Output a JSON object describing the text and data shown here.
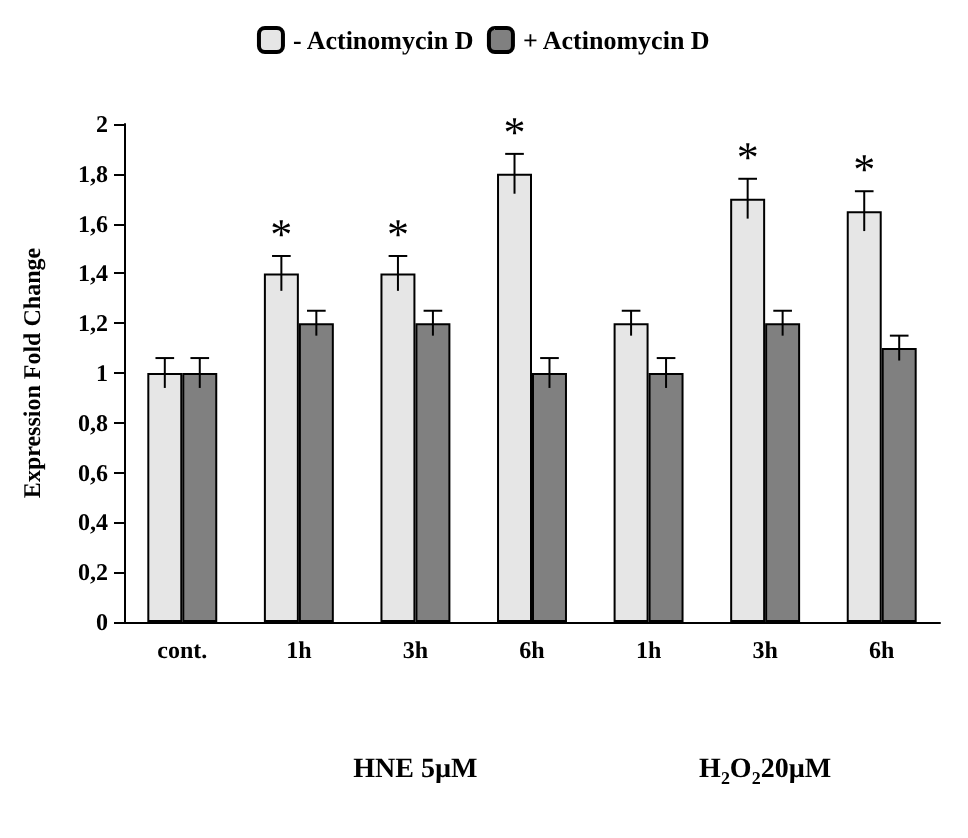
{
  "chart_data": {
    "type": "bar",
    "ylabel": "Expression Fold Change",
    "categories": [
      "cont.",
      "1h",
      "3h",
      "6h",
      "1h",
      "3h",
      "6h"
    ],
    "series": [
      {
        "name": "- Actinomycin D",
        "color": "#e6e6e6",
        "values": [
          1.0,
          1.4,
          1.4,
          1.8,
          1.2,
          1.7,
          1.65
        ],
        "value_labels": [
          null,
          "*",
          "*",
          "*",
          null,
          "*",
          "*"
        ],
        "errors": [
          0.06,
          0.07,
          0.07,
          0.08,
          0.05,
          0.08,
          0.08
        ]
      },
      {
        "name": "+ Actinomycin D",
        "color": "#808080",
        "values": [
          1.0,
          1.2,
          1.2,
          1.0,
          1.0,
          1.2,
          1.1
        ],
        "errors": [
          0.06,
          0.05,
          0.05,
          0.06,
          0.06,
          0.05,
          0.05
        ]
      }
    ],
    "ylim": [
      0,
      2
    ],
    "yticks": [
      0,
      {
        "value": 0.2,
        "label": "0,2"
      },
      {
        "value": 0.4,
        "label": "0,4"
      },
      {
        "value": 0.6,
        "label": "0,6"
      },
      {
        "value": 0.8,
        "label": "0,8"
      },
      1,
      {
        "value": 1.2,
        "label": "1,2"
      },
      {
        "value": 1.4,
        "label": "1,4"
      },
      {
        "value": 1.6,
        "label": "1,6"
      },
      {
        "value": 1.8,
        "label": "1,8"
      },
      2
    ],
    "annotations": [
      "HNE 5µM",
      "H$_{2}$O$_{2}$20µM"
    ],
    "legend": "top",
    "grid": false
  }
}
